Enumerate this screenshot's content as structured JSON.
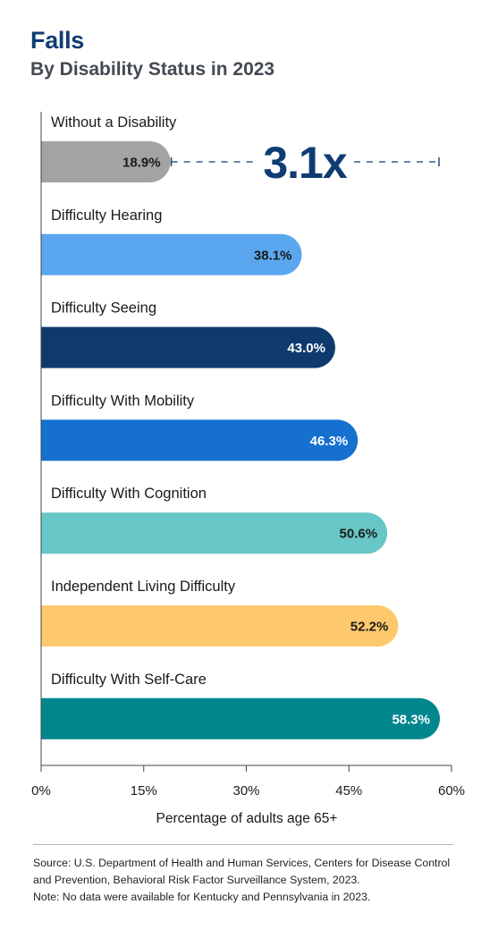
{
  "title": "Falls",
  "subtitle": "By Disability Status in 2023",
  "chart_data": {
    "type": "bar",
    "orientation": "horizontal",
    "categories": [
      "Without a Disability",
      "Difficulty Hearing",
      "Difficulty Seeing",
      "Difficulty With Mobility",
      "Difficulty With Cognition",
      "Independent Living Difficulty",
      "Difficulty With Self-Care"
    ],
    "values": [
      18.9,
      38.1,
      43.0,
      46.3,
      50.6,
      52.2,
      58.3
    ],
    "value_labels": [
      "18.9%",
      "38.1%",
      "43.0%",
      "46.3%",
      "50.6%",
      "52.2%",
      "58.3%"
    ],
    "colors": [
      "#a3a3a3",
      "#5aa7f0",
      "#0e3a6e",
      "#1670cf",
      "#67c6c6",
      "#fdc96c",
      "#02868e"
    ],
    "value_label_colors": [
      "#1a1a1a",
      "#1a1a1a",
      "#ffffff",
      "#ffffff",
      "#1a1a1a",
      "#1a1a1a",
      "#ffffff"
    ],
    "xlim": [
      0,
      60
    ],
    "xticks": [
      0,
      15,
      30,
      45,
      60
    ],
    "xtick_labels": [
      "0%",
      "15%",
      "30%",
      "45%",
      "60%"
    ],
    "xlabel": "Percentage of adults age 65+",
    "annotation": {
      "text": "3.1x",
      "from_value": 18.9,
      "to_value": 58.3,
      "color": "#0f3c73"
    },
    "grid": false
  },
  "footer": {
    "source": "Source: U.S. Department of Health and Human Services, Centers for Disease Control and Prevention, Behavioral Risk Factor Surveillance System, 2023.",
    "note": "Note: No data were available for Kentucky and Pennsylvania in 2023."
  }
}
